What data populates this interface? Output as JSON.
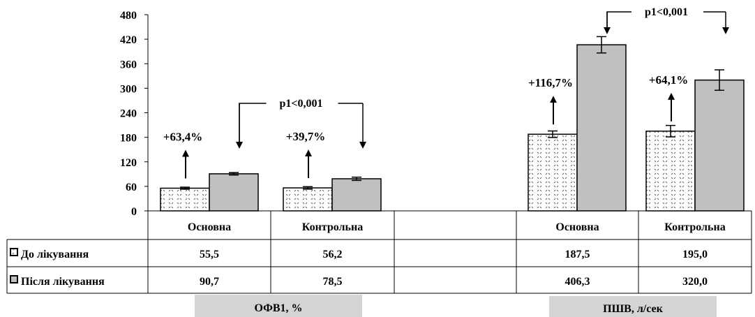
{
  "chart_data": {
    "type": "bar",
    "ylim": [
      0,
      480
    ],
    "yticks": [
      0,
      60,
      120,
      180,
      240,
      300,
      360,
      420,
      480
    ],
    "groups": [
      {
        "label": "ОФВ1, %",
        "categories": [
          "Основна",
          "Контрольна"
        ],
        "before": [
          55.5,
          56.2
        ],
        "after": [
          90.7,
          78.5
        ],
        "err_before": [
          2.5,
          3
        ],
        "err_after": [
          3,
          4
        ],
        "changes": [
          "+63,4%",
          "+39,7%"
        ],
        "p_label": "p1<0,001"
      },
      {
        "label": "ПШВ, л/сек",
        "categories": [
          "Основна",
          "Контрольна"
        ],
        "before": [
          187.5,
          195.0
        ],
        "after": [
          406.3,
          320.0
        ],
        "err_before": [
          8,
          14
        ],
        "err_after": [
          20,
          25
        ],
        "changes": [
          "+116,7%",
          "+64,1%"
        ],
        "p_label": "p1<0,001"
      }
    ],
    "series": [
      {
        "name": "До лікування",
        "values_text": [
          "55,5",
          "56,2",
          "187,5",
          "195,0"
        ],
        "color": "#ffffff",
        "pattern": "dotted"
      },
      {
        "name": "Після лікування",
        "values_text": [
          "90,7",
          "78,5",
          "406,3",
          "320,0"
        ],
        "color": "#c0c0c0"
      }
    ]
  }
}
